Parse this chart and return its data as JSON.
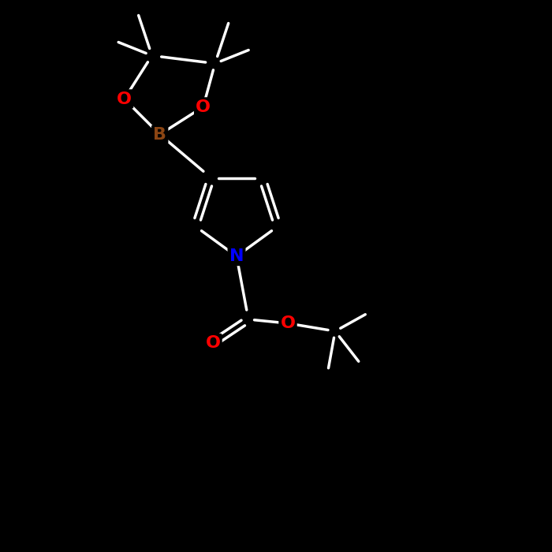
{
  "bg": "#000000",
  "bond_color": "#ffffff",
  "bond_width": 2.5,
  "atom_colors": {
    "C": "#ffffff",
    "N": "#0000ff",
    "O": "#ff0000",
    "B": "#8B4513",
    "H": "#ffffff"
  },
  "font_size": 16,
  "font_weight": "bold"
}
